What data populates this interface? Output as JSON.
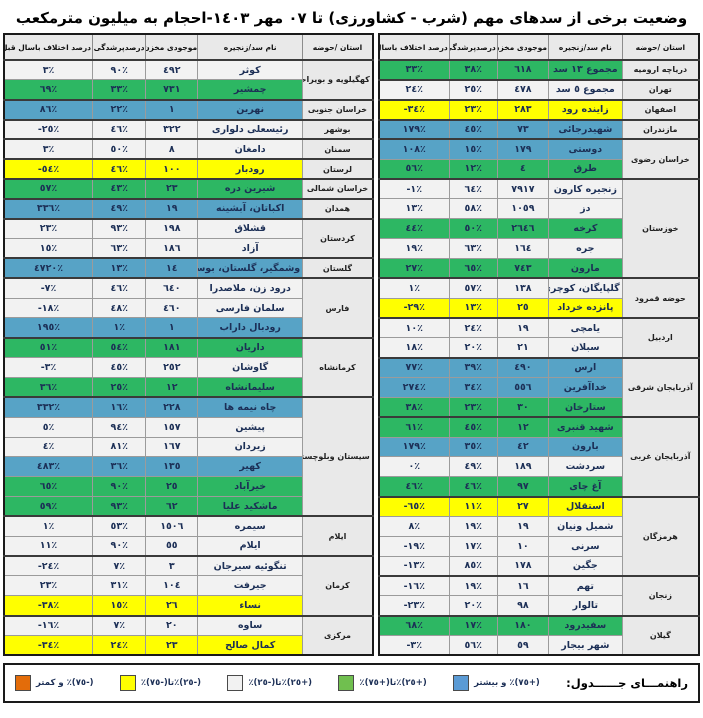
{
  "title": "وضعیت برخی از سدهای مهم (شرب - کشاورزی) تا ٠٧ مهر ١٤٠٣-احجام به میلیون مترمکعب",
  "columns": {
    "province": "استان /حوضه",
    "dam": "نام سد/زنجیره",
    "storage": "موجودی مخزن",
    "fill": "درصدپرشدگی",
    "diff": "درصد اختلاف باسال قبل"
  },
  "colors": {
    "blue": "#57A3C6",
    "green": "#2DB763",
    "white": "#F2F2F2",
    "yellow": "#FFFF00"
  },
  "legend": {
    "label": "راهنمـــای جــــــدول:",
    "items": [
      {
        "name": "blue",
        "color": "#5B9BD5",
        "text": "(+٧٥)٪ و بیشتر"
      },
      {
        "name": "green",
        "color": "#70BF4F",
        "text": "(+٢٥)٪تا(+٧٥)٪"
      },
      {
        "name": "white",
        "color": "#F2F2F2",
        "text": "(+٢٥)٪تا(-٢٥)٪"
      },
      {
        "name": "yellow",
        "color": "#FFFF00",
        "text": "(-٢٥)٪تا(-٧٥)٪"
      },
      {
        "name": "orange",
        "color": "#E36C0A",
        "text": "(-٧٥)٪ و کمتر"
      }
    ]
  },
  "right_table": {
    "groups": [
      {
        "province": "دریاچه ارومیه",
        "rows": [
          {
            "dam": "مجموع ١٣ سد",
            "storage": "٦١٨",
            "fill": "٣٨٪",
            "diff": "٣٣٪",
            "color": "green"
          }
        ]
      },
      {
        "province": "تهران",
        "rows": [
          {
            "dam": "مجموع ٥ سد",
            "storage": "٤٧٨",
            "fill": "٢٥٪",
            "diff": "٢٤٪",
            "color": "white"
          }
        ]
      },
      {
        "province": "اصفهان",
        "rows": [
          {
            "dam": "زاینده رود",
            "storage": "٢٨٣",
            "fill": "٢٣٪",
            "diff": "-٣٤٪",
            "color": "yellow"
          }
        ]
      },
      {
        "province": "مازندران",
        "rows": [
          {
            "dam": "شهیدرجائی",
            "storage": "٧٣",
            "fill": "٤٥٪",
            "diff": "١٧٩٪",
            "color": "blue"
          }
        ]
      },
      {
        "province": "خراسان رضوی",
        "rows": [
          {
            "dam": "دوستی",
            "storage": "١٧٩",
            "fill": "١٥٪",
            "diff": "١٠٨٪",
            "color": "blue"
          },
          {
            "dam": "طرق",
            "storage": "٤",
            "fill": "١٢٪",
            "diff": "٥٦٪",
            "color": "green"
          }
        ]
      },
      {
        "province": "خوزستان",
        "rows": [
          {
            "dam": "زنجیره کارون",
            "storage": "٧٩١٧",
            "fill": "٦٤٪",
            "diff": "-١٪",
            "color": "white"
          },
          {
            "dam": "دز",
            "storage": "١٠٥٩",
            "fill": "٥٨٪",
            "diff": "١٣٪",
            "color": "white"
          },
          {
            "dam": "کرخه",
            "storage": "٢٦٤٦",
            "fill": "٥٠٪",
            "diff": "٤٤٪",
            "color": "green"
          },
          {
            "dam": "جره",
            "storage": "١٦٤",
            "fill": "٦٣٪",
            "diff": "١٩٪",
            "color": "white"
          },
          {
            "dam": "مارون",
            "storage": "٧٤٣",
            "fill": "٦٥٪",
            "diff": "٢٧٪",
            "color": "green"
          }
        ]
      },
      {
        "province": "حوضه قمرود",
        "rows": [
          {
            "dam": "گلپایگان، کوچری",
            "storage": "١٣٨",
            "fill": "٥٧٪",
            "diff": "١٪",
            "color": "white"
          },
          {
            "dam": "پانزده خرداد",
            "storage": "٢٥",
            "fill": "١٣٪",
            "diff": "-٢٩٪",
            "color": "yellow"
          }
        ]
      },
      {
        "province": "اردبیل",
        "rows": [
          {
            "dam": "یامچی",
            "storage": "١٩",
            "fill": "٢٤٪",
            "diff": "١٠٪",
            "color": "white"
          },
          {
            "dam": "سبلان",
            "storage": "٢١",
            "fill": "٢٠٪",
            "diff": "١٨٪",
            "color": "white"
          }
        ]
      },
      {
        "province": "آذربایجان شرقی",
        "rows": [
          {
            "dam": "ارس",
            "storage": "٤٩٠",
            "fill": "٣٩٪",
            "diff": "٧٧٪",
            "color": "blue"
          },
          {
            "dam": "خداآفرین",
            "storage": "٥٥٦",
            "fill": "٣٤٪",
            "diff": "٢٧٤٪",
            "color": "blue"
          },
          {
            "dam": "ستارخان",
            "storage": "٣٠",
            "fill": "٢٣٪",
            "diff": "٣٨٪",
            "color": "green"
          }
        ]
      },
      {
        "province": "آذربایجان غربی",
        "rows": [
          {
            "dam": "شهید قنبری",
            "storage": "١٢",
            "fill": "٤٥٪",
            "diff": "٦١٪",
            "color": "green"
          },
          {
            "dam": "بارون",
            "storage": "٤٢",
            "fill": "٣٥٪",
            "diff": "١٧٩٪",
            "color": "blue"
          },
          {
            "dam": "سردشت",
            "storage": "١٨٩",
            "fill": "٤٩٪",
            "diff": "٠٪",
            "color": "white"
          },
          {
            "dam": "آغ چای",
            "storage": "٩٧",
            "fill": "٤٦٪",
            "diff": "٤٦٪",
            "color": "green"
          }
        ]
      },
      {
        "province": "هرمزگان",
        "rows": [
          {
            "dam": "استقلال",
            "storage": "٢٧",
            "fill": "١١٪",
            "diff": "-٦٥٪",
            "color": "yellow"
          },
          {
            "dam": "شمیل ونیان",
            "storage": "١٩",
            "fill": "١٩٪",
            "diff": "٨٪",
            "color": "white"
          },
          {
            "dam": "سرنی",
            "storage": "١٠",
            "fill": "١٧٪",
            "diff": "-١٩٪",
            "color": "white"
          },
          {
            "dam": "جگین",
            "storage": "١٧٨",
            "fill": "٨٥٪",
            "diff": "-١٣٪",
            "color": "white"
          }
        ]
      },
      {
        "province": "زنجان",
        "rows": [
          {
            "dam": "تهم",
            "storage": "١٦",
            "fill": "١٩٪",
            "diff": "-١٦٪",
            "color": "white"
          },
          {
            "dam": "تالوار",
            "storage": "٩٨",
            "fill": "٢٠٪",
            "diff": "-٢٣٪",
            "color": "white"
          }
        ]
      },
      {
        "province": "گیلان",
        "rows": [
          {
            "dam": "سفیدرود",
            "storage": "١٨٠",
            "fill": "١٧٪",
            "diff": "٦٨٪",
            "color": "green"
          },
          {
            "dam": "شهر بیجار",
            "storage": "٥٩",
            "fill": "٥٦٪",
            "diff": "-٣٪",
            "color": "white"
          }
        ]
      }
    ]
  },
  "left_table": {
    "groups": [
      {
        "province": "کهگیلویه و بویراحمد",
        "rows": [
          {
            "dam": "کوثر",
            "storage": "٤٩٢",
            "fill": "٩٠٪",
            "diff": "٣٪",
            "color": "white"
          },
          {
            "dam": "چمشیر",
            "storage": "٧٣١",
            "fill": "٣٣٪",
            "diff": "٦٩٪",
            "color": "green"
          }
        ]
      },
      {
        "province": "خراسان جنوبی",
        "rows": [
          {
            "dam": "نهرین",
            "storage": "١",
            "fill": "٢٢٪",
            "diff": "٨٦٪",
            "color": "blue"
          }
        ]
      },
      {
        "province": "بوشهر",
        "rows": [
          {
            "dam": "رئیسعلی دلواری",
            "storage": "٣٢٢",
            "fill": "٤٦٪",
            "diff": "-٢٥٪",
            "color": "white"
          }
        ]
      },
      {
        "province": "سمنان",
        "rows": [
          {
            "dam": "دامغان",
            "storage": "٨",
            "fill": "٥٠٪",
            "diff": "٣٪",
            "color": "white"
          }
        ]
      },
      {
        "province": "لرستان",
        "rows": [
          {
            "dam": "رودبار",
            "storage": "١٠٠",
            "fill": "٤٦٪",
            "diff": "-٥٤٪",
            "color": "yellow"
          }
        ]
      },
      {
        "province": "خراسان شمالی",
        "rows": [
          {
            "dam": "شیرین دره",
            "storage": "٢٣",
            "fill": "٤٣٪",
            "diff": "٥٧٪",
            "color": "green"
          }
        ]
      },
      {
        "province": "همدان",
        "rows": [
          {
            "dam": "اکباتان، آبشینه",
            "storage": "١٩",
            "fill": "٤٩٪",
            "diff": "٣٣٦٪",
            "color": "blue"
          }
        ]
      },
      {
        "province": "کردستان",
        "rows": [
          {
            "dam": "قشلاق",
            "storage": "١٩٨",
            "fill": "٩٣٪",
            "diff": "٢٣٪",
            "color": "white"
          },
          {
            "dam": "آزاد",
            "storage": "١٨٦",
            "fill": "٦٣٪",
            "diff": "١٥٪",
            "color": "white"
          }
        ]
      },
      {
        "province": "گلستان",
        "rows": [
          {
            "dam": "وشمگیر، گلستان، بوستان",
            "storage": "١٤",
            "fill": "١٣٪",
            "diff": "٤٧٢٠٪",
            "color": "blue"
          }
        ]
      },
      {
        "province": "فارس",
        "rows": [
          {
            "dam": "درود زن، ملاصدرا",
            "storage": "٦٤٠",
            "fill": "٤٦٪",
            "diff": "-٧٪",
            "color": "white"
          },
          {
            "dam": "سلمان فارسی",
            "storage": "٤٦٠",
            "fill": "٤٨٪",
            "diff": "-١٨٪",
            "color": "white"
          },
          {
            "dam": "رودبال داراب",
            "storage": "١",
            "fill": "١٪",
            "diff": "١٩٥٪",
            "color": "blue"
          }
        ]
      },
      {
        "province": "کرمانشاه",
        "rows": [
          {
            "dam": "داریان",
            "storage": "١٨١",
            "fill": "٥٤٪",
            "diff": "٥١٪",
            "color": "green"
          },
          {
            "dam": "گاوشان",
            "storage": "٢٥٢",
            "fill": "٤٥٪",
            "diff": "-٣٪",
            "color": "white"
          },
          {
            "dam": "سلیمانشاه",
            "storage": "١٢",
            "fill": "٢٥٪",
            "diff": "٣٦٪",
            "color": "green"
          }
        ]
      },
      {
        "province": "سیستان وبلوچستان",
        "rows": [
          {
            "dam": "چاه نیمه ها",
            "storage": "٢٢٨",
            "fill": "١٦٪",
            "diff": "٣٣٢٪",
            "color": "blue"
          },
          {
            "dam": "پیشین",
            "storage": "١٥٧",
            "fill": "٩٤٪",
            "diff": "٥٪",
            "color": "white"
          },
          {
            "dam": "زیردان",
            "storage": "١٦٧",
            "fill": "٨١٪",
            "diff": "٤٪",
            "color": "white"
          },
          {
            "dam": "کهیر",
            "storage": "١٣٥",
            "fill": "٣٦٪",
            "diff": "٤٨٣٪",
            "color": "blue"
          },
          {
            "dam": "خیرآباد",
            "storage": "٢٥",
            "fill": "٩٠٪",
            "diff": "٦٥٪",
            "color": "green"
          },
          {
            "dam": "ماشکید علیا",
            "storage": "٦٢",
            "fill": "٩٣٪",
            "diff": "٥٩٪",
            "color": "green"
          }
        ]
      },
      {
        "province": "ایلام",
        "rows": [
          {
            "dam": "سیمره",
            "storage": "١٥٠٦",
            "fill": "٥٣٪",
            "diff": "١٪",
            "color": "white"
          },
          {
            "dam": "ایلام",
            "storage": "٥٥",
            "fill": "٩٠٪",
            "diff": "١١٪",
            "color": "white"
          }
        ]
      },
      {
        "province": "کرمان",
        "rows": [
          {
            "dam": "تنگوئیه سیرجان",
            "storage": "٣",
            "fill": "٧٪",
            "diff": "-٢٤٪",
            "color": "white"
          },
          {
            "dam": "جیرفت",
            "storage": "١٠٤",
            "fill": "٣١٪",
            "diff": "٢٣٪",
            "color": "white"
          },
          {
            "dam": "نساء",
            "storage": "٢٦",
            "fill": "١٥٪",
            "diff": "-٣٨٪",
            "color": "yellow"
          }
        ]
      },
      {
        "province": "مرکزی",
        "rows": [
          {
            "dam": "ساوه",
            "storage": "٢٠",
            "fill": "٧٪",
            "diff": "-١٦٪",
            "color": "white"
          },
          {
            "dam": "کمال صالح",
            "storage": "٢٣",
            "fill": "٢٤٪",
            "diff": "-٣٤٪",
            "color": "yellow"
          }
        ]
      }
    ]
  }
}
